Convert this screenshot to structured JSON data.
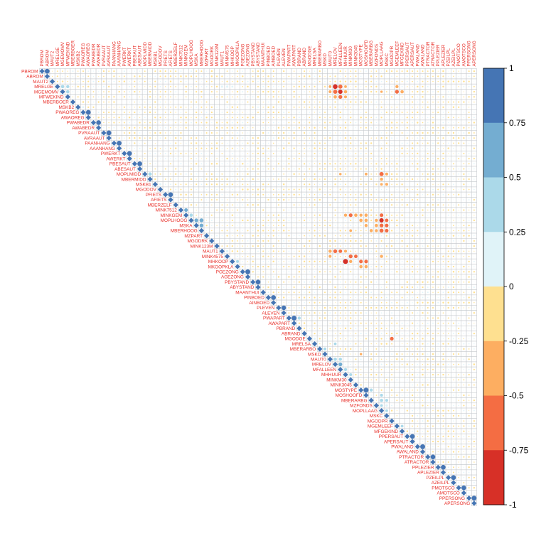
{
  "chart_data": {
    "type": "heatmap",
    "title": "",
    "style": "upper-triangle correlation matrix, circle markers sized by |r|",
    "variables": [
      "PBROM",
      "ABROM",
      "MAUT2",
      "MRELGE",
      "MGEMOMV",
      "MFWEKIND",
      "MBERBOER",
      "MSKB2",
      "PWAOREG",
      "AWAOREG",
      "PWABEDR",
      "AWABEDR",
      "PVRAAUT",
      "AVRAAUT",
      "PAANHANG",
      "AAANHANG",
      "PWERKT",
      "AWERKT",
      "PBESAUT",
      "ABESAUT",
      "MOPLMIDD",
      "MBERMIDD",
      "MSKB1",
      "MGODOV",
      "PFIETS",
      "AFIETS",
      "MBERZELF",
      "MINK7512",
      "MINKGEM",
      "MOPLHOOG",
      "MSKA",
      "MBERHOOG",
      "MZPART",
      "MGODRK",
      "MINK123M",
      "MAUT1",
      "MINK4575",
      "MHKOOP",
      "MKOOPKLA",
      "PGEZONG",
      "AGEZONG",
      "PBYSTAND",
      "ABYSTAND",
      "MAANTHUI",
      "PINBOED",
      "AINBOED",
      "PLEVEN",
      "ALEVEN",
      "PWAPART",
      "AWAPART",
      "PBRAND",
      "ABRAND",
      "MGODGE",
      "MRELSA",
      "MBERARBO",
      "MSKD",
      "MAUT0",
      "MRELOV",
      "MFALLEEN",
      "MHHUUR",
      "MINKM30",
      "MINK3045",
      "MOSTYPE",
      "MOSHOOFD",
      "MBERARBG",
      "MZFONDS",
      "MOPLLAAG",
      "MSKC",
      "MGODPR",
      "MGEMLEEF",
      "MFGEKIND",
      "PPERSAUT",
      "APERSAUT",
      "PWALAND",
      "AWALAND",
      "PTRACTOR",
      "ATRACTOR",
      "PPLEZIER",
      "APLEZIER",
      "PZEILPL",
      "AZEILPL",
      "PMOTSCO",
      "AMOTSCO",
      "PPERSONG",
      "APERSONG"
    ],
    "correlations": [
      {
        "a": "PBROM",
        "b": "ABROM",
        "r": 0.96
      },
      {
        "a": "MRELGE",
        "b": "MGEMOMV",
        "r": 0.45
      },
      {
        "a": "MRELGE",
        "b": "MFWEKIND",
        "r": 0.4
      },
      {
        "a": "MGEMOMV",
        "b": "MFWEKIND",
        "r": 0.45
      },
      {
        "a": "MSKB2",
        "b": "PWAOREG",
        "r": 0.15
      },
      {
        "a": "PWAOREG",
        "b": "AWAOREG",
        "r": 0.93
      },
      {
        "a": "PWABEDR",
        "b": "AWABEDR",
        "r": 0.9
      },
      {
        "a": "PVRAAUT",
        "b": "AVRAAUT",
        "r": 0.95
      },
      {
        "a": "PAANHANG",
        "b": "AAANHANG",
        "r": 0.93
      },
      {
        "a": "PWERKT",
        "b": "AWERKT",
        "r": 0.92
      },
      {
        "a": "PBESAUT",
        "b": "ABESAUT",
        "r": 0.93
      },
      {
        "a": "MOPLMIDD",
        "b": "MBERMIDD",
        "r": 0.5
      },
      {
        "a": "MSKB1",
        "b": "MGODOV",
        "r": 0.2
      },
      {
        "a": "PFIETS",
        "b": "AFIETS",
        "r": 0.9
      },
      {
        "a": "MINK7512",
        "b": "MINKGEM",
        "r": 0.55
      },
      {
        "a": "MINKGEM",
        "b": "MOPLHOOG",
        "r": 0.45
      },
      {
        "a": "MOPLHOOG",
        "b": "MSKA",
        "r": 0.6
      },
      {
        "a": "MOPLHOOG",
        "b": "MBERHOOG",
        "r": 0.65
      },
      {
        "a": "MSKA",
        "b": "MBERHOOG",
        "r": 0.6
      },
      {
        "a": "MAUT1",
        "b": "MINK4575",
        "r": 0.25
      },
      {
        "a": "MHKOOP",
        "b": "MKOOPKLA",
        "r": 0.35
      },
      {
        "a": "PGEZONG",
        "b": "AGEZONG",
        "r": 0.98
      },
      {
        "a": "PBYSTAND",
        "b": "ABYSTAND",
        "r": 0.92
      },
      {
        "a": "PINBOED",
        "b": "AINBOED",
        "r": 0.93
      },
      {
        "a": "PLEVEN",
        "b": "ALEVEN",
        "r": 0.85
      },
      {
        "a": "PWAPART",
        "b": "AWAPART",
        "r": 0.98
      },
      {
        "a": "PWAPART",
        "b": "PBRAND",
        "r": 0.4
      },
      {
        "a": "MGODGE",
        "b": "MRELSA",
        "r": 0.2
      },
      {
        "a": "MAUT0",
        "b": "MRELOV",
        "r": 0.45
      },
      {
        "a": "MRELOV",
        "b": "MFALLEEN",
        "r": 0.6
      },
      {
        "a": "MHHUUR",
        "b": "MINKM30",
        "r": 0.35
      },
      {
        "a": "MOSTYPE",
        "b": "MOSHOOFD",
        "r": 0.99
      },
      {
        "a": "MBERARBG",
        "b": "MOPLLAAG",
        "r": 0.45
      },
      {
        "a": "MZFONDS",
        "b": "MSKC",
        "r": 0.25
      },
      {
        "a": "PPERSAUT",
        "b": "APERSAUT",
        "r": 0.9
      },
      {
        "a": "PWALAND",
        "b": "AWALAND",
        "r": 0.98
      },
      {
        "a": "PTRACTOR",
        "b": "ATRACTOR",
        "r": 0.92
      },
      {
        "a": "PPLEZIER",
        "b": "APLEZIER",
        "r": 0.92
      },
      {
        "a": "PZEILPL",
        "b": "AZEILPL",
        "r": 0.95
      },
      {
        "a": "PMOTSCO",
        "b": "AMOTSCO",
        "r": 0.92
      },
      {
        "a": "PPERSONG",
        "b": "APERSONG",
        "r": 0.98
      },
      {
        "a": "MRELGE",
        "b": "MAUT1",
        "r": 0.2
      },
      {
        "a": "MRELGE",
        "b": "MINK4575",
        "r": 0.2
      },
      {
        "a": "MRELGE",
        "b": "MHKOOP",
        "r": 0.15
      },
      {
        "a": "MRELGE",
        "b": "MAUT0",
        "r": -0.3
      },
      {
        "a": "MRELGE",
        "b": "MRELOV",
        "r": -0.89
      },
      {
        "a": "MRELGE",
        "b": "MFALLEEN",
        "r": -0.7
      },
      {
        "a": "MRELGE",
        "b": "MHHUUR",
        "r": -0.3
      },
      {
        "a": "MGEMOMV",
        "b": "MRELOV",
        "r": -0.7
      },
      {
        "a": "MGEMOMV",
        "b": "MFALLEEN",
        "r": -0.76
      },
      {
        "a": "MGEMOMV",
        "b": "MHHUUR",
        "r": -0.45
      },
      {
        "a": "MGEMOMV",
        "b": "MAUT0",
        "r": -0.35
      },
      {
        "a": "MGEMOMV",
        "b": "MOPLLAAG",
        "r": -0.25
      },
      {
        "a": "MFWEKIND",
        "b": "MRELOV",
        "r": -0.45
      },
      {
        "a": "MFWEKIND",
        "b": "MFALLEEN",
        "r": -0.6
      },
      {
        "a": "MFWEKIND",
        "b": "MHHUUR",
        "r": -0.35
      },
      {
        "a": "MRELGE",
        "b": "MGEMLEEF",
        "r": -0.4
      },
      {
        "a": "MGEMOMV",
        "b": "MGEMLEEF",
        "r": -0.6
      },
      {
        "a": "MGEMOMV",
        "b": "MFGEKIND",
        "r": -0.45
      },
      {
        "a": "MOPLMIDD",
        "b": "MFALLEEN",
        "r": -0.25
      },
      {
        "a": "MOPLMIDD",
        "b": "MOSHOOFD",
        "r": -0.3
      },
      {
        "a": "MOPLMIDD",
        "b": "MOPLLAAG",
        "r": -0.72
      },
      {
        "a": "MOPLMIDD",
        "b": "MSKC",
        "r": -0.35
      },
      {
        "a": "MBERMIDD",
        "b": "MOPLLAAG",
        "r": -0.4
      },
      {
        "a": "MINKGEM",
        "b": "MINKM30",
        "r": -0.55
      },
      {
        "a": "MINKGEM",
        "b": "MINK3045",
        "r": -0.45
      },
      {
        "a": "MINKGEM",
        "b": "MOSTYPE",
        "r": -0.4
      },
      {
        "a": "MINKGEM",
        "b": "MOSHOOFD",
        "r": -0.45
      },
      {
        "a": "MINKGEM",
        "b": "MOPLLAAG",
        "r": -0.55
      },
      {
        "a": "MINKGEM",
        "b": "MHHUUR",
        "r": -0.4
      },
      {
        "a": "MOPLHOOG",
        "b": "MOPLLAAG",
        "r": -0.75
      },
      {
        "a": "MOPLHOOG",
        "b": "MSKC",
        "r": -0.5
      },
      {
        "a": "MOPLHOOG",
        "b": "MOSHOOFD",
        "r": -0.45
      },
      {
        "a": "MOPLHOOG",
        "b": "MOSTYPE",
        "r": -0.45
      },
      {
        "a": "MOPLHOOG",
        "b": "MZFONDS",
        "r": -0.4
      },
      {
        "a": "MSKA",
        "b": "MOPLLAAG",
        "r": -0.6
      },
      {
        "a": "MSKA",
        "b": "MSKC",
        "r": -0.55
      },
      {
        "a": "MSKA",
        "b": "MZFONDS",
        "r": -0.45
      },
      {
        "a": "MSKA",
        "b": "MOSHOOFD",
        "r": -0.4
      },
      {
        "a": "MBERHOOG",
        "b": "MOPLLAAG",
        "r": -0.65
      },
      {
        "a": "MBERHOOG",
        "b": "MSKC",
        "r": -0.55
      },
      {
        "a": "MBERHOOG",
        "b": "MBERARBG",
        "r": -0.45
      },
      {
        "a": "MBERHOOG",
        "b": "MZFONDS",
        "r": -0.4
      },
      {
        "a": "MAUT1",
        "b": "MRELOV",
        "r": -0.6
      },
      {
        "a": "MAUT1",
        "b": "MFALLEEN",
        "r": -0.5
      },
      {
        "a": "MAUT1",
        "b": "MAUT0",
        "r": -0.45
      },
      {
        "a": "MAUT1",
        "b": "MHHUUR",
        "r": -0.35
      },
      {
        "a": "MINK4575",
        "b": "MINKM30",
        "r": -0.6
      },
      {
        "a": "MINK4575",
        "b": "MINK3045",
        "r": -0.5
      },
      {
        "a": "MINK4575",
        "b": "MOPLLAAG",
        "r": -0.4
      },
      {
        "a": "MINK4575",
        "b": "MAUT0",
        "r": -0.35
      },
      {
        "a": "MHKOOP",
        "b": "MHHUUR",
        "r": -0.99
      },
      {
        "a": "MHKOOP",
        "b": "MINKM30",
        "r": -0.4
      },
      {
        "a": "MHKOOP",
        "b": "MOSTYPE",
        "r": -0.55
      },
      {
        "a": "MHKOOP",
        "b": "MOSHOOFD",
        "r": -0.55
      },
      {
        "a": "MKOOPKLA",
        "b": "MOSTYPE",
        "r": -0.45
      },
      {
        "a": "MKOOPKLA",
        "b": "MOSHOOFD",
        "r": -0.45
      },
      {
        "a": "MBERHOOG",
        "b": "MINKM30",
        "r": -0.3
      },
      {
        "a": "MSKD",
        "b": "MOSTYPE",
        "r": -0.25
      },
      {
        "a": "MSKB1",
        "b": "MOPLLAAG",
        "r": -0.3
      },
      {
        "a": "MSKB1",
        "b": "MSKC",
        "r": -0.35
      },
      {
        "a": "MGODGE",
        "b": "MGODPR",
        "r": -0.55
      },
      {
        "a": "MRELSA",
        "b": "MRELOV",
        "r": 0.3
      },
      {
        "a": "MBERARBO",
        "b": "MSKD",
        "r": 0.35
      },
      {
        "a": "MAUT0",
        "b": "MFALLEEN",
        "r": 0.4
      },
      {
        "a": "MFALLEEN",
        "b": "MHHUUR",
        "r": 0.4
      },
      {
        "a": "MOSTYPE",
        "b": "MBERARBG",
        "r": 0.4
      },
      {
        "a": "MOSHOOFD",
        "b": "MOPLLAAG",
        "r": 0.35
      },
      {
        "a": "MBERARBG",
        "b": "MSKC",
        "r": 0.35
      },
      {
        "a": "MZFONDS",
        "b": "MOPLLAAG",
        "r": 0.3
      },
      {
        "a": "MOPLLAAG",
        "b": "MSKC",
        "r": 0.3
      },
      {
        "a": "MGEMLEEF",
        "b": "MFGEKIND",
        "r": 0.3
      }
    ],
    "color_scale": {
      "breaks": [
        -1,
        -0.75,
        -0.5,
        -0.25,
        0,
        0.25,
        0.5,
        0.75,
        1
      ],
      "colors": [
        "#d73027",
        "#f46d43",
        "#fdae61",
        "#fee090",
        "#e0f3f8",
        "#abd9e9",
        "#74add1",
        "#4575b4"
      ],
      "tick_labels": [
        "1",
        "0.75",
        "0.5",
        "0.25",
        "0",
        "-0.25",
        "-0.5",
        "-0.75",
        "-1"
      ]
    },
    "legend_position": "right",
    "label_color": "#e8302a",
    "grid_color": "#c8ccd0"
  }
}
